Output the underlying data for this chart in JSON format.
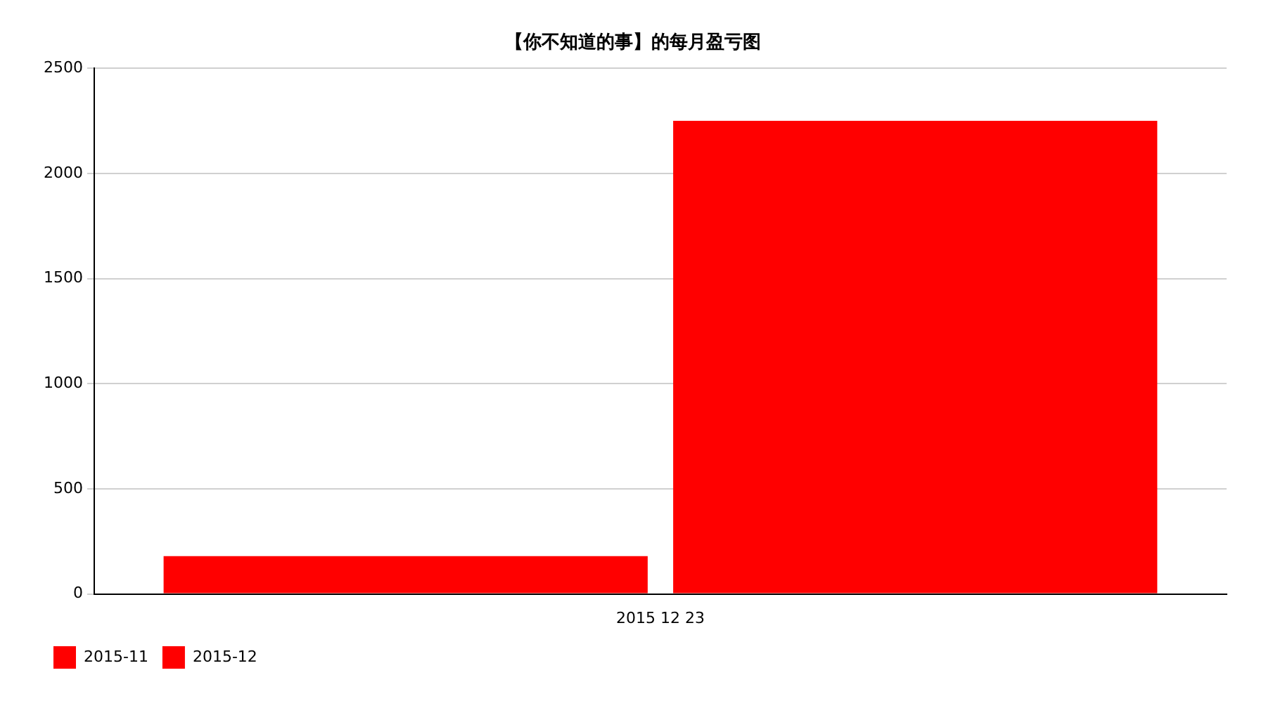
{
  "chart_data": {
    "type": "bar",
    "title": "【你不知道的事】的每月盈亏图",
    "categories": [
      "2015 12 23"
    ],
    "series": [
      {
        "name": "2015-11",
        "color": "#ff0000",
        "values": [
          180
        ]
      },
      {
        "name": "2015-12",
        "color": "#ff0000",
        "values": [
          2250
        ]
      }
    ],
    "ylim": [
      0,
      2500
    ],
    "yticks": [
      0,
      500,
      1000,
      1500,
      2000,
      2500
    ],
    "grid": "y",
    "legend": "bottom left"
  }
}
